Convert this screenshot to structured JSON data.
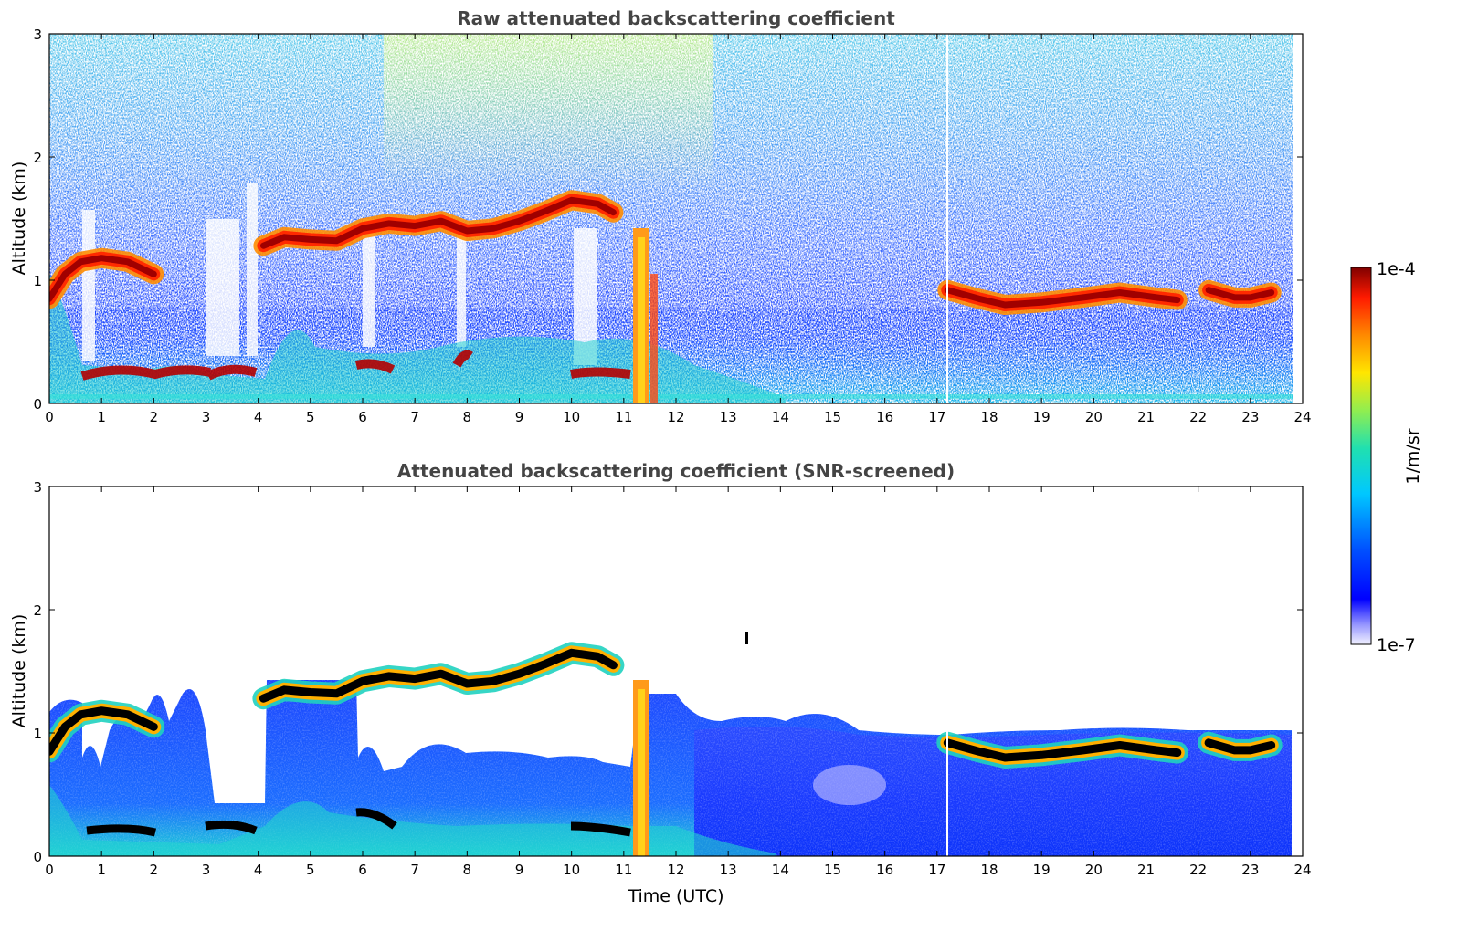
{
  "chart_data": [
    {
      "type": "heatmap",
      "title": "Raw attenuated backscattering coefficient",
      "xlabel": "",
      "ylabel": "Altitude (km)",
      "xlim": [
        0,
        24
      ],
      "ylim": [
        0,
        3
      ],
      "xticks": [
        "0",
        "1",
        "2",
        "3",
        "4",
        "5",
        "6",
        "7",
        "8",
        "9",
        "10",
        "11",
        "12",
        "13",
        "14",
        "15",
        "16",
        "17",
        "18",
        "19",
        "20",
        "21",
        "22",
        "23",
        "24"
      ],
      "yticks": [
        "0",
        "1",
        "2",
        "3"
      ],
      "cloud_layers": [
        {
          "t": [
            0.0,
            0.3,
            0.6,
            1.0,
            1.5,
            2.0
          ],
          "alt": [
            0.85,
            1.05,
            1.15,
            1.18,
            1.15,
            1.05
          ]
        },
        {
          "t": [
            4.1,
            4.5,
            5.0,
            5.5,
            6.0,
            6.5,
            7.0,
            7.5,
            8.0,
            8.5,
            9.0,
            9.5,
            10.0,
            10.5,
            10.8
          ],
          "alt": [
            1.28,
            1.35,
            1.33,
            1.32,
            1.42,
            1.46,
            1.44,
            1.48,
            1.4,
            1.42,
            1.48,
            1.56,
            1.65,
            1.62,
            1.55
          ]
        },
        {
          "t": [
            17.2,
            17.8,
            18.3,
            19.0,
            19.8,
            20.5,
            21.2,
            21.6
          ],
          "alt": [
            0.92,
            0.85,
            0.8,
            0.82,
            0.86,
            0.9,
            0.86,
            0.84
          ]
        },
        {
          "t": [
            22.2,
            22.7,
            23.0,
            23.4
          ],
          "alt": [
            0.92,
            0.86,
            0.86,
            0.9
          ]
        }
      ]
    },
    {
      "type": "heatmap",
      "title": "Attenuated backscattering coefficient (SNR-screened)",
      "xlabel": "Time (UTC)",
      "ylabel": "Altitude (km)",
      "xlim": [
        0,
        24
      ],
      "ylim": [
        0,
        3
      ],
      "xticks": [
        "0",
        "1",
        "2",
        "3",
        "4",
        "5",
        "6",
        "7",
        "8",
        "9",
        "10",
        "11",
        "12",
        "13",
        "14",
        "15",
        "16",
        "17",
        "18",
        "19",
        "20",
        "21",
        "22",
        "23",
        "24"
      ],
      "yticks": [
        "0",
        "1",
        "2",
        "3"
      ]
    }
  ],
  "colorbar": {
    "max_label": "1e-4",
    "min_label": "1e-7",
    "label": "1/m/sr",
    "scale": "log"
  },
  "colors": {
    "cloud_core": "#a00000",
    "cloud_edge": "#ff7a00",
    "noise_blue": "#1438ff",
    "aerosol_cyan": "#22d2d0",
    "screened_black": "#000000"
  }
}
